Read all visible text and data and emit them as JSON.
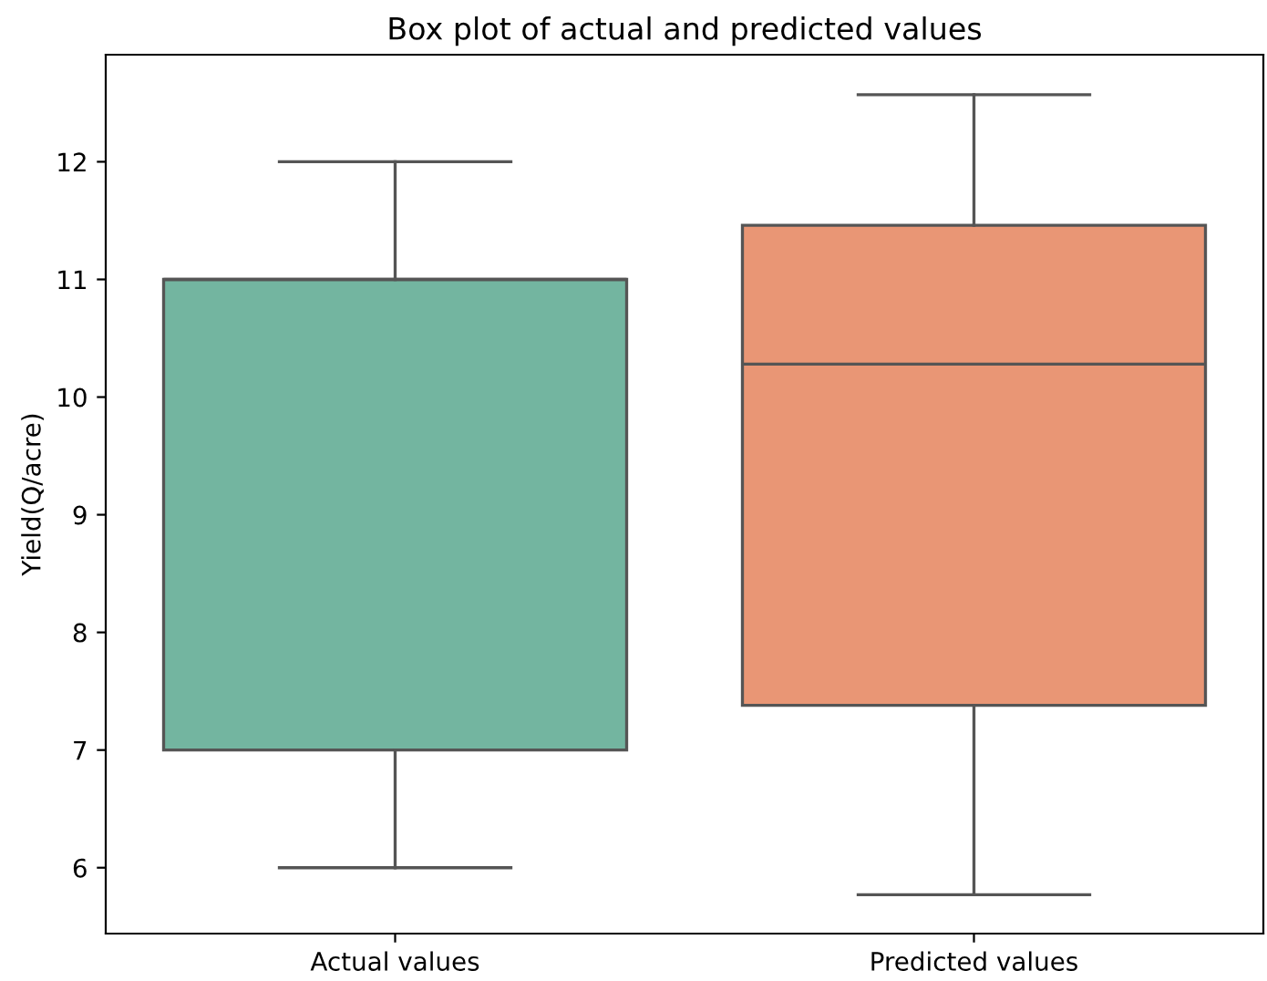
{
  "chart_data": {
    "type": "box",
    "title": "Box plot of actual and predicted values",
    "ylabel": "Yield(Q/acre)",
    "categories": [
      "Actual values",
      "Predicted values"
    ],
    "colors": [
      "#73b5a0",
      "#e99675"
    ],
    "boxes": [
      {
        "low": 6,
        "q1": 7,
        "median": 11,
        "q3": 11,
        "high": 12
      },
      {
        "low": 5.77,
        "q1": 7.38,
        "median": 10.28,
        "q3": 11.46,
        "high": 12.57
      }
    ],
    "ylim": [
      5.44,
      12.91
    ],
    "yticks": [
      6,
      7,
      8,
      9,
      10,
      11,
      12
    ],
    "grid": false
  }
}
